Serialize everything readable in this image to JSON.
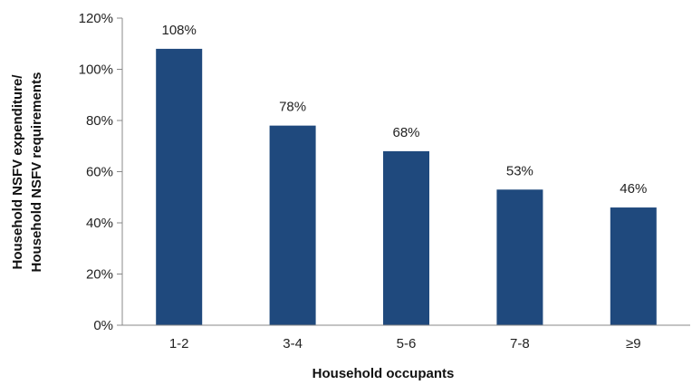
{
  "chart_data": {
    "type": "bar",
    "categories": [
      "1-2",
      "3-4",
      "5-6",
      "7-8",
      "≥9"
    ],
    "values": [
      108,
      78,
      68,
      53,
      46
    ],
    "data_labels": [
      "108%",
      "78%",
      "68%",
      "53%",
      "46%"
    ],
    "title": "",
    "xlabel": "Household occupants",
    "ylabel_lines": [
      "Household NSFV expenditure/",
      "Household NSFV requirements"
    ],
    "ylim": [
      0,
      120
    ],
    "y_ticks": [
      0,
      20,
      40,
      60,
      80,
      100,
      120
    ],
    "y_tick_labels": [
      "0%",
      "20%",
      "40%",
      "60%",
      "80%",
      "100%",
      "120%"
    ],
    "grid": false,
    "legend": "none",
    "colors": {
      "bar": "#1f497d"
    }
  }
}
